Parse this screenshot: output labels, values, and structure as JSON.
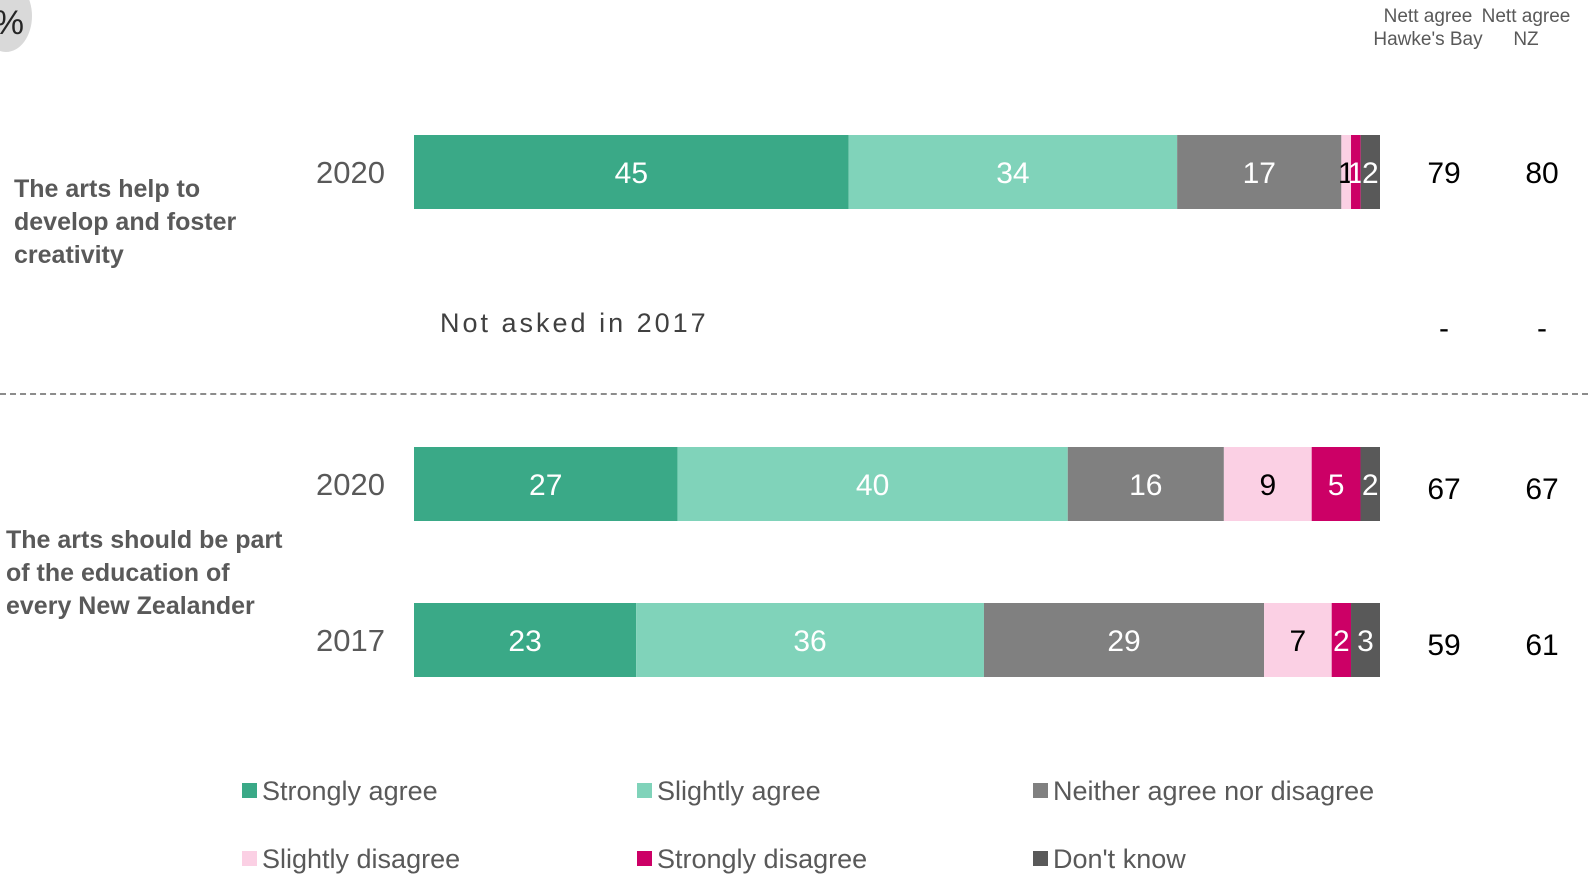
{
  "badge": "%",
  "columns": {
    "hawkes_bay": "Nett agree Hawke's Bay",
    "nz": "Nett agree NZ"
  },
  "statements": [
    {
      "label": "The arts help to develop and foster creativity",
      "not_asked": "Not asked in 2017",
      "dash_hb": "-",
      "dash_nz": "-"
    },
    {
      "label": "The arts should be part of the education of every New Zealander"
    }
  ],
  "chart_data": {
    "type": "bar",
    "orientation": "horizontal",
    "stacked": true,
    "unit": "%",
    "categories": [
      "Strongly agree",
      "Slightly agree",
      "Neither agree nor disagree",
      "Slightly disagree",
      "Strongly disagree",
      "Don't know"
    ],
    "colors": [
      "#3aa987",
      "#80d3ba",
      "#808080",
      "#fbd0e4",
      "#cc0066",
      "#595959"
    ],
    "label_colors": [
      "#ffffff",
      "#ffffff",
      "#ffffff",
      "#000000",
      "#ffffff",
      "#ffffff"
    ],
    "rows": [
      {
        "statement": 0,
        "year": "2020",
        "values": [
          45,
          34,
          17,
          1,
          1,
          2
        ],
        "labels": [
          "45",
          "34",
          "17",
          "1",
          "1",
          "2"
        ],
        "nett_hb": "79",
        "nett_nz": "80"
      },
      {
        "statement": 1,
        "year": "2020",
        "values": [
          27,
          40,
          16,
          9,
          5,
          2
        ],
        "labels": [
          "27",
          "40",
          "16",
          "9",
          "5",
          "2"
        ],
        "nett_hb": "67",
        "nett_nz": "67"
      },
      {
        "statement": 1,
        "year": "2017",
        "values": [
          23,
          36,
          29,
          7,
          2,
          3
        ],
        "labels": [
          "23",
          "36",
          "29",
          "7",
          "2",
          "3"
        ],
        "nett_hb": "59",
        "nett_nz": "61"
      }
    ],
    "legend": [
      "Strongly agree",
      "Slightly agree",
      "Neither agree nor disagree",
      "Slightly disagree",
      "Strongly disagree",
      "Don't know"
    ],
    "legend_position": "bottom"
  }
}
